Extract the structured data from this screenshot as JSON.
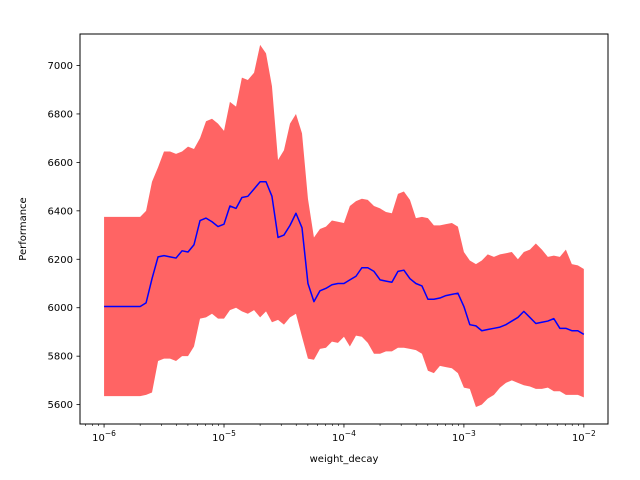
{
  "chart_data": {
    "type": "line",
    "title": "",
    "xlabel": "weight_decay",
    "ylabel": "Performance",
    "xscale": "log",
    "xlim": [
      6.3e-07,
      0.0159
    ],
    "ylim": [
      5520,
      7130
    ],
    "grid": false,
    "legend": "none",
    "x_ticks": [
      {
        "value": 1e-06,
        "base": "10",
        "exp": "−6"
      },
      {
        "value": 1e-05,
        "base": "10",
        "exp": "−5"
      },
      {
        "value": 0.0001,
        "base": "10",
        "exp": "−4"
      },
      {
        "value": 0.001,
        "base": "10",
        "exp": "−3"
      },
      {
        "value": 0.01,
        "base": "10",
        "exp": "−2"
      }
    ],
    "y_ticks": [
      {
        "value": 5600,
        "label": "5600"
      },
      {
        "value": 5800,
        "label": "5800"
      },
      {
        "value": 6000,
        "label": "6000"
      },
      {
        "value": 6200,
        "label": "6200"
      },
      {
        "value": 6400,
        "label": "6400"
      },
      {
        "value": 6600,
        "label": "6600"
      },
      {
        "value": 6800,
        "label": "6800"
      },
      {
        "value": 7000,
        "label": "7000"
      }
    ],
    "colors": {
      "line": "#0000ff",
      "band": "#ff6464"
    },
    "series": [
      {
        "style": "line",
        "x": [
          1e-06,
          1.26e-06,
          1.58e-06,
          2e-06,
          2.24e-06,
          2.51e-06,
          2.82e-06,
          3.16e-06,
          3.55e-06,
          3.98e-06,
          4.47e-06,
          5.01e-06,
          5.62e-06,
          6.31e-06,
          7.08e-06,
          7.94e-06,
          8.91e-06,
          1e-05,
          1.12e-05,
          1.26e-05,
          1.41e-05,
          1.58e-05,
          1.78e-05,
          2e-05,
          2.24e-05,
          2.51e-05,
          2.82e-05,
          3.16e-05,
          3.55e-05,
          3.98e-05,
          4.47e-05,
          5.01e-05,
          5.62e-05,
          6.31e-05,
          7.08e-05,
          7.94e-05,
          8.91e-05,
          0.0001,
          0.000112,
          0.000126,
          0.000141,
          0.000158,
          0.000178,
          0.0002,
          0.000224,
          0.000251,
          0.000282,
          0.000316,
          0.000355,
          0.000398,
          0.000447,
          0.000501,
          0.000562,
          0.000631,
          0.000708,
          0.000794,
          0.000891,
          0.001,
          0.00112,
          0.00126,
          0.00141,
          0.00158,
          0.00178,
          0.002,
          0.00224,
          0.00251,
          0.00282,
          0.00316,
          0.00355,
          0.00398,
          0.00447,
          0.00501,
          0.00562,
          0.00631,
          0.00708,
          0.00794,
          0.00891,
          0.01
        ],
        "values": [
          6005,
          6005,
          6005,
          6005,
          6020,
          6120,
          6210,
          6215,
          6210,
          6205,
          6235,
          6230,
          6260,
          6360,
          6370,
          6355,
          6335,
          6345,
          6420,
          6410,
          6455,
          6460,
          6490,
          6520,
          6520,
          6460,
          6290,
          6300,
          6340,
          6390,
          6330,
          6100,
          6025,
          6070,
          6080,
          6095,
          6100,
          6100,
          6115,
          6130,
          6165,
          6165,
          6150,
          6115,
          6110,
          6105,
          6150,
          6155,
          6120,
          6100,
          6090,
          6035,
          6035,
          6040,
          6050,
          6055,
          6060,
          6005,
          5930,
          5925,
          5905,
          5910,
          5915,
          5920,
          5930,
          5945,
          5960,
          5985,
          5960,
          5935,
          5940,
          5945,
          5955,
          5915,
          5915,
          5905,
          5905,
          5890
        ]
      },
      {
        "style": "band",
        "x": [
          1e-06,
          1.26e-06,
          1.58e-06,
          2e-06,
          2.24e-06,
          2.51e-06,
          2.82e-06,
          3.16e-06,
          3.55e-06,
          3.98e-06,
          4.47e-06,
          5.01e-06,
          5.62e-06,
          6.31e-06,
          7.08e-06,
          7.94e-06,
          8.91e-06,
          1e-05,
          1.12e-05,
          1.26e-05,
          1.41e-05,
          1.58e-05,
          1.78e-05,
          2e-05,
          2.24e-05,
          2.51e-05,
          2.82e-05,
          3.16e-05,
          3.55e-05,
          3.98e-05,
          4.47e-05,
          5.01e-05,
          5.62e-05,
          6.31e-05,
          7.08e-05,
          7.94e-05,
          8.91e-05,
          0.0001,
          0.000112,
          0.000126,
          0.000141,
          0.000158,
          0.000178,
          0.0002,
          0.000224,
          0.000251,
          0.000282,
          0.000316,
          0.000355,
          0.000398,
          0.000447,
          0.000501,
          0.000562,
          0.000631,
          0.000708,
          0.000794,
          0.000891,
          0.001,
          0.00112,
          0.00126,
          0.00141,
          0.00158,
          0.00178,
          0.002,
          0.00224,
          0.00251,
          0.00282,
          0.00316,
          0.00355,
          0.00398,
          0.00447,
          0.00501,
          0.00562,
          0.00631,
          0.00708,
          0.00794,
          0.00891,
          0.01
        ],
        "upper": [
          6375,
          6375,
          6375,
          6375,
          6400,
          6520,
          6580,
          6645,
          6645,
          6635,
          6645,
          6665,
          6655,
          6700,
          6770,
          6780,
          6760,
          6730,
          6850,
          6830,
          6950,
          6940,
          6970,
          7085,
          7050,
          6915,
          6610,
          6650,
          6760,
          6800,
          6720,
          6450,
          6290,
          6325,
          6335,
          6360,
          6355,
          6350,
          6420,
          6440,
          6450,
          6445,
          6420,
          6410,
          6395,
          6390,
          6470,
          6480,
          6445,
          6370,
          6375,
          6370,
          6340,
          6340,
          6345,
          6350,
          6335,
          6230,
          6195,
          6180,
          6195,
          6220,
          6210,
          6220,
          6225,
          6230,
          6200,
          6230,
          6240,
          6265,
          6240,
          6210,
          6215,
          6210,
          6240,
          6180,
          6175,
          6160
        ],
        "lower": [
          5635,
          5635,
          5635,
          5635,
          5640,
          5650,
          5780,
          5790,
          5790,
          5780,
          5800,
          5800,
          5840,
          5955,
          5960,
          5975,
          5955,
          5955,
          5990,
          6000,
          5985,
          5975,
          5990,
          5960,
          5985,
          5940,
          5950,
          5930,
          5960,
          5975,
          5880,
          5790,
          5785,
          5830,
          5835,
          5860,
          5855,
          5880,
          5840,
          5885,
          5880,
          5855,
          5810,
          5810,
          5820,
          5820,
          5835,
          5835,
          5830,
          5825,
          5810,
          5740,
          5730,
          5760,
          5755,
          5750,
          5730,
          5670,
          5665,
          5590,
          5600,
          5625,
          5640,
          5670,
          5690,
          5700,
          5690,
          5680,
          5675,
          5665,
          5665,
          5670,
          5655,
          5655,
          5640,
          5640,
          5640,
          5630
        ]
      }
    ]
  }
}
